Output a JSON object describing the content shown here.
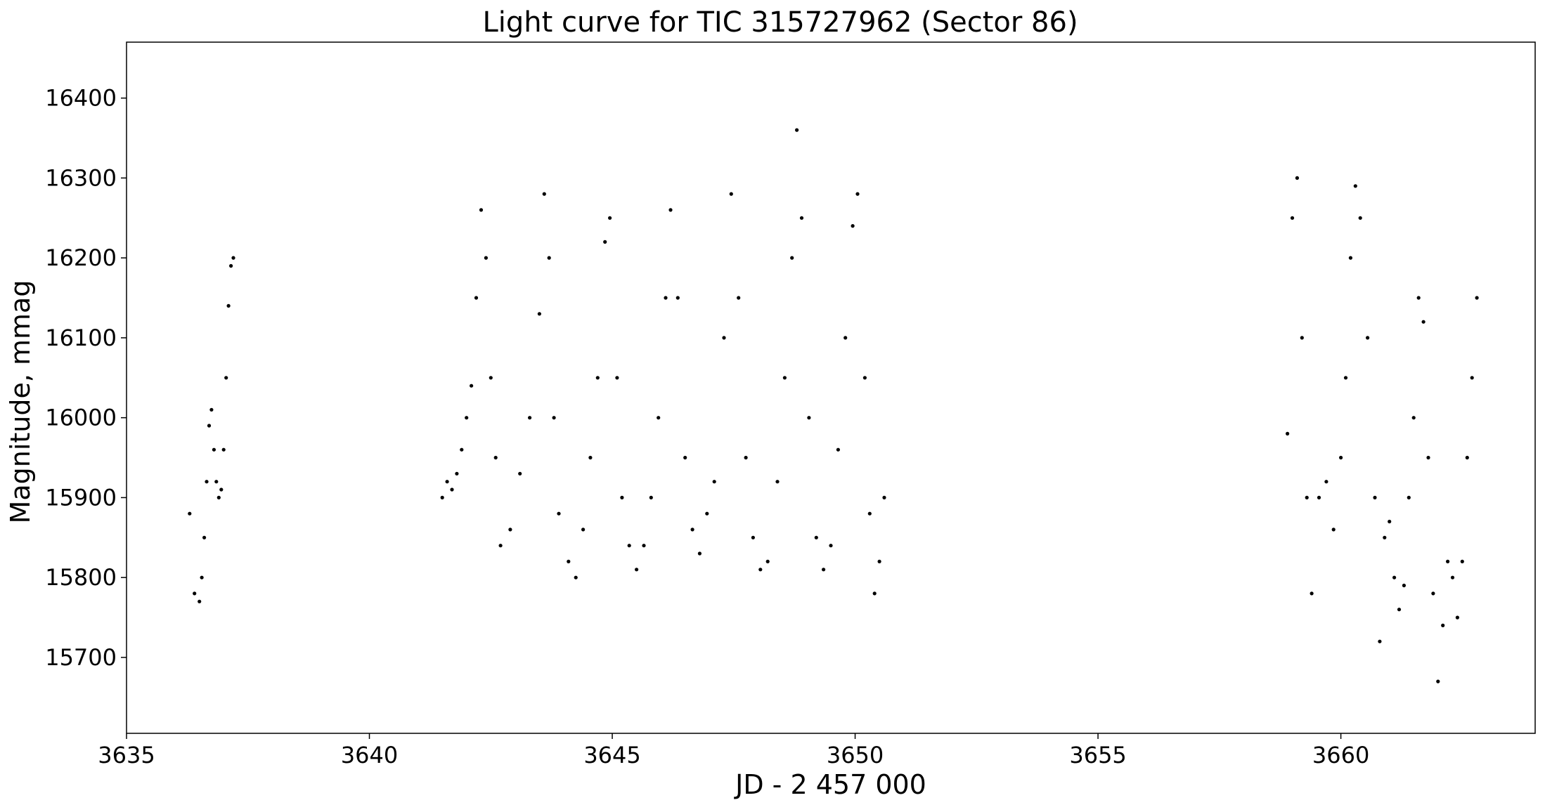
{
  "chart_data": {
    "type": "scatter",
    "title": "Light curve for TIC 315727962 (Sector 86)",
    "xlabel": "JD - 2 457 000",
    "ylabel": "Magnitude, mmag",
    "xlim": [
      3635,
      3664
    ],
    "ylim": [
      15605,
      16470
    ],
    "xticks": [
      3635,
      3640,
      3645,
      3650,
      3655,
      3660
    ],
    "yticks": [
      15700,
      15800,
      15900,
      16000,
      16100,
      16200,
      16300,
      16400
    ],
    "grid": false,
    "marker_color": "#000000",
    "series": [
      {
        "points": [
          [
            3636.3,
            15880
          ],
          [
            3636.4,
            15780
          ],
          [
            3636.5,
            15770
          ],
          [
            3636.55,
            15800
          ],
          [
            3636.6,
            15850
          ],
          [
            3636.65,
            15920
          ],
          [
            3636.7,
            15990
          ],
          [
            3636.75,
            16010
          ],
          [
            3636.8,
            15960
          ],
          [
            3636.85,
            15920
          ],
          [
            3636.9,
            15900
          ],
          [
            3636.95,
            15910
          ],
          [
            3637.0,
            15960
          ],
          [
            3637.05,
            16050
          ],
          [
            3637.1,
            16140
          ],
          [
            3637.15,
            16190
          ],
          [
            3637.2,
            16200
          ],
          [
            3641.5,
            15900
          ],
          [
            3641.6,
            15920
          ],
          [
            3641.7,
            15910
          ],
          [
            3641.8,
            15930
          ],
          [
            3641.9,
            15960
          ],
          [
            3642.0,
            16000
          ],
          [
            3642.1,
            16040
          ],
          [
            3642.2,
            16150
          ],
          [
            3642.3,
            16260
          ],
          [
            3642.4,
            16200
          ],
          [
            3642.5,
            16050
          ],
          [
            3642.6,
            15950
          ],
          [
            3642.7,
            15840
          ],
          [
            3642.9,
            15860
          ],
          [
            3643.1,
            15930
          ],
          [
            3643.3,
            16000
          ],
          [
            3643.5,
            16130
          ],
          [
            3643.6,
            16280
          ],
          [
            3643.7,
            16200
          ],
          [
            3643.8,
            16000
          ],
          [
            3643.9,
            15880
          ],
          [
            3644.1,
            15820
          ],
          [
            3644.25,
            15800
          ],
          [
            3644.4,
            15860
          ],
          [
            3644.55,
            15950
          ],
          [
            3644.7,
            16050
          ],
          [
            3644.85,
            16220
          ],
          [
            3644.95,
            16250
          ],
          [
            3645.1,
            16050
          ],
          [
            3645.2,
            15900
          ],
          [
            3645.35,
            15840
          ],
          [
            3645.5,
            15810
          ],
          [
            3645.65,
            15840
          ],
          [
            3645.8,
            15900
          ],
          [
            3645.95,
            16000
          ],
          [
            3646.1,
            16150
          ],
          [
            3646.2,
            16260
          ],
          [
            3646.35,
            16150
          ],
          [
            3646.5,
            15950
          ],
          [
            3646.65,
            15860
          ],
          [
            3646.8,
            15830
          ],
          [
            3646.95,
            15880
          ],
          [
            3647.1,
            15920
          ],
          [
            3647.3,
            16100
          ],
          [
            3647.45,
            16280
          ],
          [
            3647.6,
            16150
          ],
          [
            3647.75,
            15950
          ],
          [
            3647.9,
            15850
          ],
          [
            3648.05,
            15810
          ],
          [
            3648.2,
            15820
          ],
          [
            3648.4,
            15920
          ],
          [
            3648.55,
            16050
          ],
          [
            3648.7,
            16200
          ],
          [
            3648.8,
            16360
          ],
          [
            3648.9,
            16250
          ],
          [
            3649.05,
            16000
          ],
          [
            3649.2,
            15850
          ],
          [
            3649.35,
            15810
          ],
          [
            3649.5,
            15840
          ],
          [
            3649.65,
            15960
          ],
          [
            3649.8,
            16100
          ],
          [
            3649.95,
            16240
          ],
          [
            3650.05,
            16280
          ],
          [
            3650.2,
            16050
          ],
          [
            3650.3,
            15880
          ],
          [
            3650.4,
            15780
          ],
          [
            3650.5,
            15820
          ],
          [
            3650.6,
            15900
          ],
          [
            3658.9,
            15980
          ],
          [
            3659.0,
            16250
          ],
          [
            3659.1,
            16300
          ],
          [
            3659.2,
            16100
          ],
          [
            3659.3,
            15900
          ],
          [
            3659.4,
            15780
          ],
          [
            3659.55,
            15900
          ],
          [
            3659.7,
            15920
          ],
          [
            3659.85,
            15860
          ],
          [
            3660.0,
            15950
          ],
          [
            3660.1,
            16050
          ],
          [
            3660.2,
            16200
          ],
          [
            3660.3,
            16290
          ],
          [
            3660.4,
            16250
          ],
          [
            3660.55,
            16100
          ],
          [
            3660.7,
            15900
          ],
          [
            3660.8,
            15720
          ],
          [
            3660.9,
            15850
          ],
          [
            3661.0,
            15870
          ],
          [
            3661.1,
            15800
          ],
          [
            3661.2,
            15760
          ],
          [
            3661.3,
            15790
          ],
          [
            3661.4,
            15900
          ],
          [
            3661.5,
            16000
          ],
          [
            3661.6,
            16150
          ],
          [
            3661.7,
            16120
          ],
          [
            3661.8,
            15950
          ],
          [
            3661.9,
            15780
          ],
          [
            3662.0,
            15670
          ],
          [
            3662.1,
            15740
          ],
          [
            3662.2,
            15820
          ],
          [
            3662.3,
            15800
          ],
          [
            3662.4,
            15750
          ],
          [
            3662.5,
            15820
          ],
          [
            3662.6,
            15950
          ],
          [
            3662.7,
            16050
          ],
          [
            3662.8,
            16150
          ]
        ]
      }
    ]
  }
}
